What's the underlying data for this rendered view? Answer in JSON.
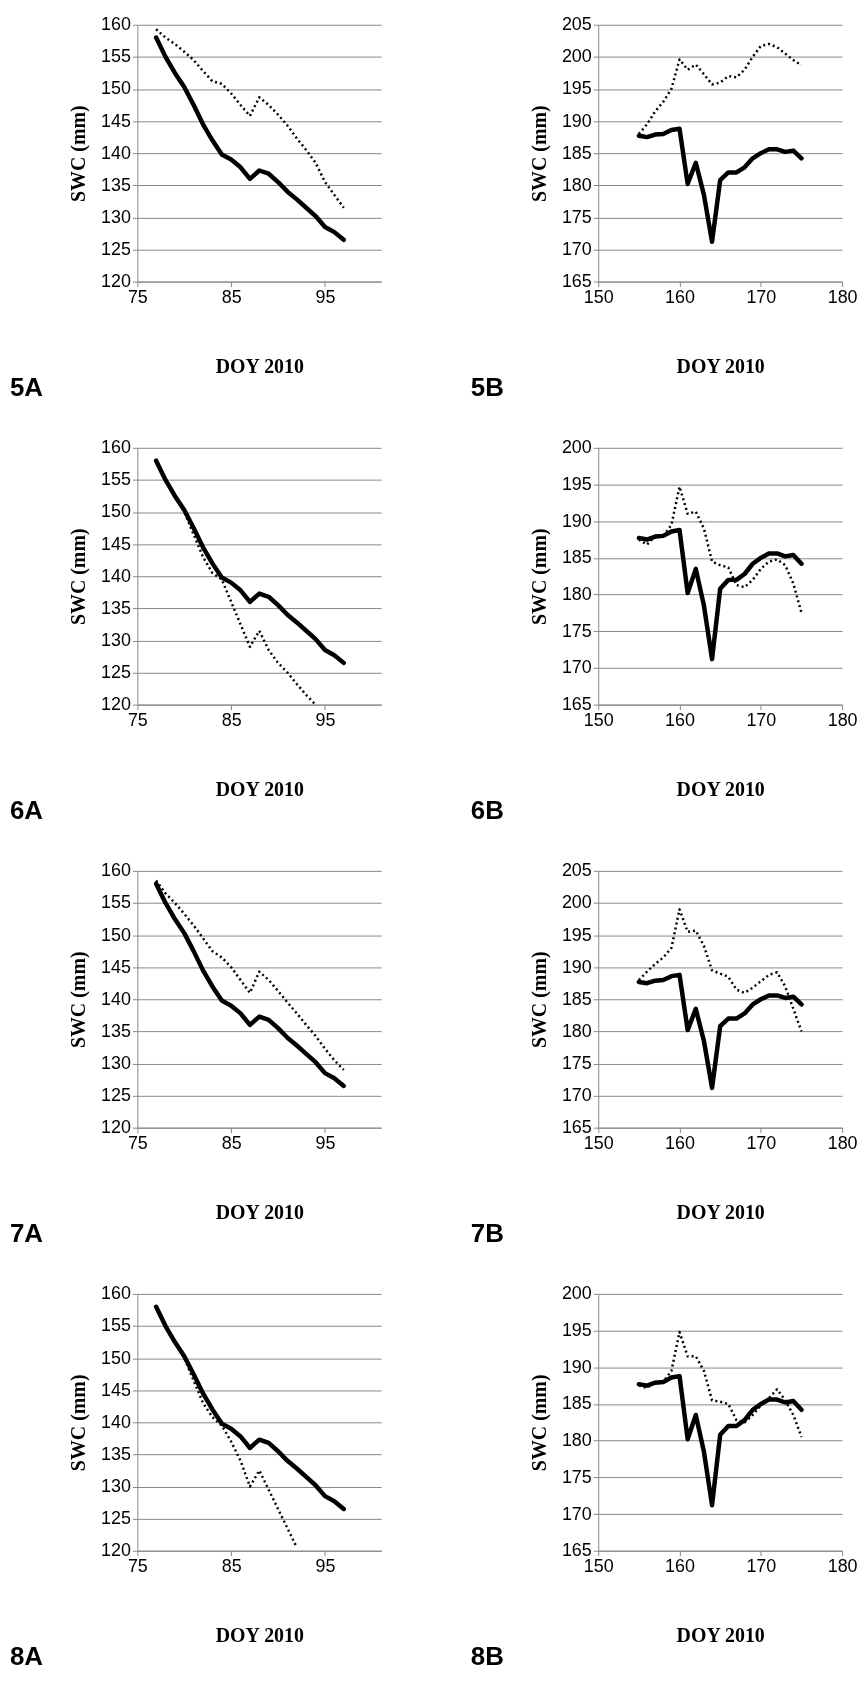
{
  "chart_data": [
    {
      "type": "line",
      "xlabel": "DOY 2010",
      "ylabel": "SWC (mm)",
      "xlim": [
        75,
        101
      ],
      "xticks": [
        75,
        85,
        95
      ],
      "ylim": [
        120,
        160
      ],
      "yticks": [
        120,
        125,
        130,
        135,
        140,
        145,
        150,
        155,
        160
      ],
      "grid": "y",
      "annotations": [
        "5A"
      ],
      "x": [
        77,
        78,
        79,
        80,
        81,
        82,
        83,
        84,
        85,
        86,
        87,
        88,
        89,
        90,
        91,
        92,
        93,
        94,
        95,
        96,
        97
      ],
      "series": [
        {
          "color": "#000000",
          "line_style": "solid",
          "values": [
            158,
            155,
            152.5,
            150.3,
            147.5,
            144.5,
            142,
            139.8,
            139,
            137.8,
            136,
            137.3,
            136.8,
            135.5,
            134,
            132.8,
            131.5,
            130.2,
            128.5,
            127.7,
            126.5
          ]
        },
        {
          "color": "#000000",
          "line_style": "dotted",
          "values": [
            159.3,
            158,
            157,
            155.8,
            154.5,
            152.8,
            151.2,
            150.8,
            149.3,
            147.5,
            145.8,
            148.7,
            147.5,
            146,
            144.3,
            142.3,
            140.5,
            138.5,
            135.5,
            133.5,
            131.5
          ]
        }
      ]
    },
    {
      "type": "line",
      "xlabel": "DOY 2010",
      "ylabel": "SWC (mm)",
      "xlim": [
        150,
        180
      ],
      "xticks": [
        150,
        160,
        170,
        180
      ],
      "ylim": [
        165,
        205
      ],
      "yticks": [
        165,
        170,
        175,
        180,
        185,
        190,
        195,
        200,
        205
      ],
      "grid": "y",
      "annotations": [
        "5B"
      ],
      "x": [
        155,
        156,
        157,
        158,
        159,
        160,
        161,
        162,
        163,
        164,
        165,
        166,
        167,
        168,
        169,
        170,
        171,
        172,
        173,
        174,
        175
      ],
      "series": [
        {
          "color": "#000000",
          "line_style": "solid",
          "values": [
            187.7,
            187.5,
            187.9,
            188,
            188.6,
            188.8,
            180.2,
            183.5,
            178.5,
            171.2,
            180.8,
            182,
            182,
            182.8,
            184.2,
            185,
            185.6,
            185.6,
            185.2,
            185.4,
            184.2
          ]
        },
        {
          "color": "#000000",
          "line_style": "dotted",
          "values": [
            188,
            189.5,
            191.5,
            193,
            195,
            199.6,
            198,
            198.8,
            197.3,
            195.7,
            196,
            197,
            196.8,
            198,
            200,
            201.7,
            202,
            201.5,
            200.5,
            199.5,
            198.7
          ]
        }
      ]
    },
    {
      "type": "line",
      "xlabel": "DOY 2010",
      "ylabel": "SWC (mm)",
      "xlim": [
        75,
        101
      ],
      "xticks": [
        75,
        85,
        95
      ],
      "ylim": [
        120,
        160
      ],
      "yticks": [
        120,
        125,
        130,
        135,
        140,
        145,
        150,
        155,
        160
      ],
      "grid": "y",
      "annotations": [
        "6A"
      ],
      "x": [
        77,
        78,
        79,
        80,
        81,
        82,
        83,
        84,
        85,
        86,
        87,
        88,
        89,
        90,
        91,
        92,
        93,
        94,
        95,
        96,
        97
      ],
      "series": [
        {
          "color": "#000000",
          "line_style": "solid",
          "values": [
            158,
            155,
            152.5,
            150.3,
            147.5,
            144.5,
            142,
            139.8,
            139,
            137.8,
            136,
            137.3,
            136.8,
            135.5,
            134,
            132.8,
            131.5,
            130.2,
            128.5,
            127.7,
            126.5
          ]
        },
        {
          "color": "#000000",
          "line_style": "dotted",
          "values": [
            158,
            155,
            152.5,
            150,
            146.5,
            143,
            140.5,
            139.5,
            136,
            132.5,
            129,
            131.5,
            128.5,
            126.5,
            125,
            123.2,
            121.5,
            120,
            null,
            null,
            null
          ]
        }
      ]
    },
    {
      "type": "line",
      "xlabel": "DOY 2010",
      "ylabel": "SWC (mm)",
      "xlim": [
        150,
        180
      ],
      "xticks": [
        150,
        160,
        170,
        180
      ],
      "ylim": [
        165,
        200
      ],
      "yticks": [
        165,
        170,
        175,
        180,
        185,
        190,
        195,
        200
      ],
      "grid": "y",
      "annotations": [
        "6B"
      ],
      "x": [
        155,
        156,
        157,
        158,
        159,
        160,
        161,
        162,
        163,
        164,
        165,
        166,
        167,
        168,
        169,
        170,
        171,
        172,
        173,
        174,
        175
      ],
      "series": [
        {
          "color": "#000000",
          "line_style": "solid",
          "values": [
            187.7,
            187.5,
            187.9,
            188,
            188.6,
            188.8,
            180.2,
            183.5,
            178.5,
            171.2,
            180.8,
            182,
            182,
            182.8,
            184.2,
            185,
            185.6,
            185.6,
            185.2,
            185.4,
            184.2
          ]
        },
        {
          "color": "#000000",
          "line_style": "dotted",
          "values": [
            187.5,
            186.8,
            188,
            188,
            189.5,
            194.7,
            191,
            191.3,
            189,
            184.5,
            184,
            183.7,
            181.3,
            181,
            182,
            183.5,
            184.5,
            184.8,
            184,
            181.5,
            177.5
          ]
        }
      ]
    },
    {
      "type": "line",
      "xlabel": "DOY 2010",
      "ylabel": "SWC (mm)",
      "xlim": [
        75,
        101
      ],
      "xticks": [
        75,
        85,
        95
      ],
      "ylim": [
        120,
        160
      ],
      "yticks": [
        120,
        125,
        130,
        135,
        140,
        145,
        150,
        155,
        160
      ],
      "grid": "y",
      "annotations": [
        "7A"
      ],
      "x": [
        77,
        78,
        79,
        80,
        81,
        82,
        83,
        84,
        85,
        86,
        87,
        88,
        89,
        90,
        91,
        92,
        93,
        94,
        95,
        96,
        97
      ],
      "series": [
        {
          "color": "#000000",
          "line_style": "solid",
          "values": [
            158,
            155,
            152.5,
            150.3,
            147.5,
            144.5,
            142,
            139.8,
            139,
            137.8,
            136,
            137.3,
            136.8,
            135.5,
            134,
            132.8,
            131.5,
            130.2,
            128.5,
            127.7,
            126.5
          ]
        },
        {
          "color": "#000000",
          "line_style": "dotted",
          "values": [
            158.5,
            156.5,
            155,
            153.3,
            151.5,
            149.5,
            147.5,
            146.5,
            145,
            143,
            141,
            144.3,
            143,
            141.3,
            139.5,
            137.8,
            136,
            134.3,
            132.3,
            130.5,
            129
          ]
        }
      ]
    },
    {
      "type": "line",
      "xlabel": "DOY 2010",
      "ylabel": "SWC (mm)",
      "xlim": [
        150,
        180
      ],
      "xticks": [
        150,
        160,
        170,
        180
      ],
      "ylim": [
        165,
        205
      ],
      "yticks": [
        165,
        170,
        175,
        180,
        185,
        190,
        195,
        200,
        205
      ],
      "grid": "y",
      "annotations": [
        "7B"
      ],
      "x": [
        155,
        156,
        157,
        158,
        159,
        160,
        161,
        162,
        163,
        164,
        165,
        166,
        167,
        168,
        169,
        170,
        171,
        172,
        173,
        174,
        175
      ],
      "series": [
        {
          "color": "#000000",
          "line_style": "solid",
          "values": [
            187.7,
            187.5,
            187.9,
            188,
            188.6,
            188.8,
            180.2,
            183.5,
            178.5,
            171.2,
            180.8,
            182,
            182,
            182.8,
            184.2,
            185,
            185.6,
            185.6,
            185.2,
            185.4,
            184.2
          ]
        },
        {
          "color": "#000000",
          "line_style": "dotted",
          "values": [
            188,
            189.3,
            190.5,
            191.5,
            193,
            199,
            195.5,
            195.7,
            193.3,
            189.5,
            189,
            188.5,
            186.5,
            186,
            186.8,
            187.8,
            188.8,
            189.2,
            187,
            183.5,
            180
          ]
        }
      ]
    },
    {
      "type": "line",
      "xlabel": "DOY 2010",
      "ylabel": "SWC (mm)",
      "xlim": [
        75,
        101
      ],
      "xticks": [
        75,
        85,
        95
      ],
      "ylim": [
        120,
        160
      ],
      "yticks": [
        120,
        125,
        130,
        135,
        140,
        145,
        150,
        155,
        160
      ],
      "grid": "y",
      "annotations": [
        "8A"
      ],
      "x": [
        77,
        78,
        79,
        80,
        81,
        82,
        83,
        84,
        85,
        86,
        87,
        88,
        89,
        90,
        91,
        92,
        93,
        94,
        95,
        96,
        97
      ],
      "series": [
        {
          "color": "#000000",
          "line_style": "solid",
          "values": [
            158,
            155,
            152.5,
            150.3,
            147.5,
            144.5,
            142,
            139.8,
            139,
            137.8,
            136,
            137.3,
            136.8,
            135.5,
            134,
            132.8,
            131.5,
            130.2,
            128.5,
            127.7,
            126.5
          ]
        },
        {
          "color": "#000000",
          "line_style": "dotted",
          "values": [
            158,
            155,
            152.5,
            150,
            146.5,
            143,
            140.8,
            139.5,
            137,
            134,
            130,
            132.5,
            129.5,
            126.5,
            123.5,
            120.5,
            null,
            null,
            null,
            null,
            null
          ]
        }
      ]
    },
    {
      "type": "line",
      "xlabel": "DOY 2010",
      "ylabel": "SWC (mm)",
      "xlim": [
        150,
        180
      ],
      "xticks": [
        150,
        160,
        170,
        180
      ],
      "ylim": [
        165,
        200
      ],
      "yticks": [
        165,
        170,
        175,
        180,
        185,
        190,
        195,
        200
      ],
      "grid": "y",
      "annotations": [
        "8B"
      ],
      "x": [
        155,
        156,
        157,
        158,
        159,
        160,
        161,
        162,
        163,
        164,
        165,
        166,
        167,
        168,
        169,
        170,
        171,
        172,
        173,
        174,
        175
      ],
      "series": [
        {
          "color": "#000000",
          "line_style": "solid",
          "values": [
            187.7,
            187.5,
            187.9,
            188,
            188.6,
            188.8,
            180.2,
            183.5,
            178.5,
            171.2,
            180.8,
            182,
            182,
            182.8,
            184.2,
            185,
            185.6,
            185.6,
            185.2,
            185.4,
            184.2
          ]
        },
        {
          "color": "#000000",
          "line_style": "dotted",
          "values": [
            187.5,
            187.2,
            188,
            188,
            189.5,
            194.8,
            191.5,
            191.5,
            189.5,
            185.5,
            185.3,
            185,
            182.8,
            182.5,
            183.5,
            184.8,
            185.8,
            187,
            185.5,
            183.5,
            180.5
          ]
        }
      ]
    }
  ]
}
